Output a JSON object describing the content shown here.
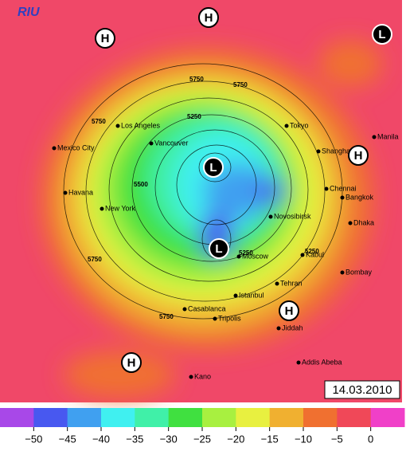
{
  "logo": "RIU",
  "date": "14.03.2010",
  "pressure_centers": [
    "H",
    "H",
    "L",
    "H",
    "L",
    "L",
    "H",
    "H"
  ],
  "cities": [
    "Tokyo",
    "Los Angeles",
    "Vancouver",
    "Mexico City",
    "Havana",
    "New York",
    "Shanghai",
    "Manila",
    "Chennai",
    "Bangkok",
    "Novosibirsk",
    "Dhaka",
    "Kabul",
    "Moscow",
    "Bombay",
    "Tehran",
    "Istanbul",
    "Casablanca",
    "Tripolis",
    "Jiddah",
    "Addis Abeba",
    "Kano"
  ],
  "contour_labels": [
    "5750",
    "5750",
    "5250",
    "5750",
    "5500",
    "5250",
    "5250",
    "5750",
    "5750"
  ],
  "colorbar": {
    "colors": [
      "#a848e8",
      "#4858f0",
      "#40a0f0",
      "#40f0f0",
      "#40f0a8",
      "#40e040",
      "#a8f040",
      "#e8f040",
      "#f0b030",
      "#f07030",
      "#f04858",
      "#f040c8"
    ],
    "labels": [
      "−50",
      "−45",
      "−40",
      "−35",
      "−30",
      "−25",
      "−20",
      "−15",
      "−10",
      "−5",
      "0"
    ]
  }
}
